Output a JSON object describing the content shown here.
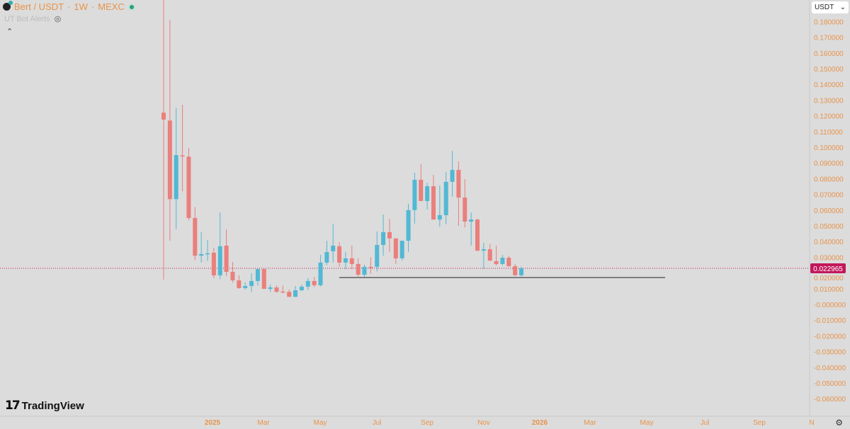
{
  "header": {
    "symbol": "Bert / USDT",
    "sep1": "·",
    "interval": "1W",
    "sep2": "·",
    "exchange": "MEXC"
  },
  "indicator": {
    "name": "UT Bot Alerts"
  },
  "currency_selector": {
    "value": "USDT"
  },
  "branding": {
    "name": "TradingView"
  },
  "colors": {
    "up": "#52b8d4",
    "down": "#ea7f7c",
    "axis_text": "#e8934a",
    "price_label_bg": "#c2185b",
    "background": "#dcdcdc"
  },
  "chart_data": {
    "type": "candlestick",
    "interval": "1W",
    "ylim": [
      -0.065,
      0.185
    ],
    "y_ticks": [
      "0.180000",
      "0.170000",
      "0.160000",
      "0.150000",
      "0.140000",
      "0.130000",
      "0.120000",
      "0.110000",
      "0.100000",
      "0.090000",
      "0.080000",
      "0.070000",
      "0.060000",
      "0.050000",
      "0.040000",
      "0.030000",
      "0.020000",
      "0.010000",
      "-0.000000",
      "-0.010000",
      "-0.020000",
      "-0.030000",
      "-0.040000",
      "-0.050000",
      "-0.060000"
    ],
    "x_ticks": [
      "2025",
      "Mar",
      "May",
      "Jul",
      "Sep",
      "Nov",
      "2026",
      "Mar",
      "May",
      "Jul",
      "Sep",
      "N"
    ],
    "current_price": "0.022965",
    "support_line_price": 0.0171,
    "ohlc": [
      [
        0.122,
        0.2,
        0.0158,
        0.1176
      ],
      [
        0.117,
        0.181,
        0.0405,
        0.067
      ],
      [
        0.067,
        0.125,
        0.048,
        0.095
      ],
      [
        0.0948,
        0.127,
        0.072,
        0.0944
      ],
      [
        0.094,
        0.0995,
        0.0536,
        0.055
      ],
      [
        0.055,
        0.062,
        0.028,
        0.031
      ],
      [
        0.031,
        0.046,
        0.0266,
        0.032
      ],
      [
        0.032,
        0.041,
        0.0276,
        0.0325
      ],
      [
        0.0329,
        0.036,
        0.0167,
        0.0185
      ],
      [
        0.0185,
        0.0585,
        0.016,
        0.037
      ],
      [
        0.0374,
        0.0477,
        0.018,
        0.0207
      ],
      [
        0.0207,
        0.027,
        0.014,
        0.0153
      ],
      [
        0.0153,
        0.0185,
        0.0099,
        0.0104
      ],
      [
        0.0104,
        0.014,
        0.0095,
        0.0117
      ],
      [
        0.0117,
        0.0198,
        0.008,
        0.0149
      ],
      [
        0.0149,
        0.0225,
        0.012,
        0.0225
      ],
      [
        0.0225,
        0.0227,
        0.0099,
        0.0099
      ],
      [
        0.0099,
        0.0125,
        0.008,
        0.0108
      ],
      [
        0.0108,
        0.012,
        0.0075,
        0.008
      ],
      [
        0.0082,
        0.012,
        0.0072,
        0.0081
      ],
      [
        0.008,
        0.0095,
        0.0048,
        0.0048
      ],
      [
        0.0048,
        0.0117,
        0.0048,
        0.009
      ],
      [
        0.009,
        0.0125,
        0.0085,
        0.0113
      ],
      [
        0.0113,
        0.0167,
        0.009,
        0.0149
      ],
      [
        0.0149,
        0.0175,
        0.011,
        0.0122
      ],
      [
        0.0122,
        0.0315,
        0.0115,
        0.0266
      ],
      [
        0.0266,
        0.0405,
        0.025,
        0.0333
      ],
      [
        0.0338,
        0.0514,
        0.0266,
        0.0374
      ],
      [
        0.037,
        0.0396,
        0.0239,
        0.0266
      ],
      [
        0.0266,
        0.0335,
        0.0225,
        0.0293
      ],
      [
        0.0293,
        0.0374,
        0.0225,
        0.0257
      ],
      [
        0.0257,
        0.0293,
        0.0171,
        0.0189
      ],
      [
        0.0189,
        0.0253,
        0.0175,
        0.0239
      ],
      [
        0.0239,
        0.03,
        0.0195,
        0.0237
      ],
      [
        0.0239,
        0.0464,
        0.021,
        0.0378
      ],
      [
        0.0378,
        0.0572,
        0.031,
        0.046
      ],
      [
        0.046,
        0.0545,
        0.0334,
        0.042
      ],
      [
        0.042,
        0.0405,
        0.0257,
        0.0293
      ],
      [
        0.0293,
        0.0405,
        0.028,
        0.0405
      ],
      [
        0.0405,
        0.064,
        0.0334,
        0.06
      ],
      [
        0.06,
        0.0838,
        0.0514,
        0.0793
      ],
      [
        0.0793,
        0.0892,
        0.0658,
        0.0658
      ],
      [
        0.0658,
        0.0775,
        0.0604,
        0.0752
      ],
      [
        0.0752,
        0.0824,
        0.054,
        0.054
      ],
      [
        0.054,
        0.0757,
        0.0495,
        0.0568
      ],
      [
        0.0568,
        0.0842,
        0.051,
        0.078
      ],
      [
        0.078,
        0.0977,
        0.0685,
        0.0856
      ],
      [
        0.0856,
        0.091,
        0.05,
        0.068
      ],
      [
        0.068,
        0.0797,
        0.049,
        0.0527
      ],
      [
        0.0527,
        0.0585,
        0.0374,
        0.054
      ],
      [
        0.054,
        0.0545,
        0.0338,
        0.0342
      ],
      [
        0.0342,
        0.0392,
        0.0225,
        0.0351
      ],
      [
        0.0351,
        0.0385,
        0.0275,
        0.0279
      ],
      [
        0.0275,
        0.0374,
        0.0248,
        0.0257
      ],
      [
        0.0257,
        0.0315,
        0.0248,
        0.0297
      ],
      [
        0.0297,
        0.031,
        0.0239,
        0.0243
      ],
      [
        0.0243,
        0.0257,
        0.0183,
        0.0185
      ],
      [
        0.0185,
        0.024,
        0.0178,
        0.022965
      ]
    ]
  }
}
